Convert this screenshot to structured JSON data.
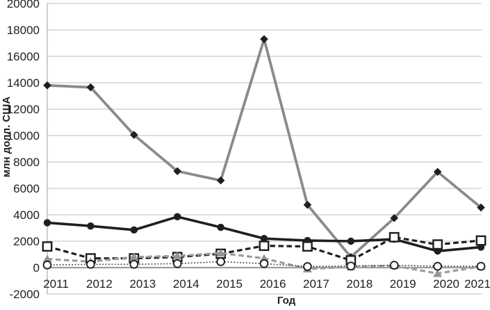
{
  "chart_data": {
    "type": "line",
    "title": "",
    "xlabel": "Год",
    "ylabel": "млн долл. США",
    "categories": [
      "2011",
      "2012",
      "2013",
      "2014",
      "2015",
      "2016",
      "2017",
      "2018",
      "2019",
      "2020",
      "2021"
    ],
    "ylim": [
      -2000,
      20000
    ],
    "ytick_step": 2000,
    "grid": "horizontal",
    "legend": "none",
    "series": [
      {
        "name": "gray-solid-black-diamond",
        "marker": "diamond",
        "marker_color": "#1f1f1f",
        "line_color": "#8a8a8a",
        "line_style": "solid",
        "line_width": 3.8,
        "values": [
          13800,
          13650,
          10050,
          7300,
          6600,
          17300,
          4750,
          800,
          3750,
          7250,
          4550
        ]
      },
      {
        "name": "black-solid-filled-circle",
        "marker": "filled-circle",
        "marker_color": "#1f1f1f",
        "line_color": "#1f1f1f",
        "line_style": "solid",
        "line_width": 3.6,
        "values": [
          3400,
          3150,
          2850,
          3850,
          3050,
          2200,
          2050,
          2000,
          2150,
          1250,
          1550
        ]
      },
      {
        "name": "black-dashed-open-square",
        "marker": "open-square",
        "marker_color": "#1f1f1f",
        "line_color": "#1f1f1f",
        "line_style": "dashed",
        "line_width": 3.2,
        "values": [
          1600,
          700,
          700,
          800,
          1050,
          1650,
          1600,
          550,
          2300,
          1750,
          2050
        ]
      },
      {
        "name": "gray-dashed-filled-triangle",
        "marker": "filled-triangle",
        "marker_color": "#959595",
        "line_color": "#9c9c9c",
        "line_style": "dashed",
        "line_width": 3.2,
        "values": [
          650,
          450,
          800,
          880,
          1100,
          700,
          -100,
          50,
          150,
          -450,
          100
        ]
      },
      {
        "name": "black-dotted-open-circle",
        "marker": "open-circle",
        "marker_color": "#1f1f1f",
        "line_color": "#3a3a3a",
        "line_style": "dotted",
        "line_width": 1.6,
        "values": [
          200,
          250,
          250,
          300,
          450,
          300,
          80,
          120,
          180,
          100,
          100
        ]
      }
    ]
  },
  "colors": {
    "background": "#ffffff",
    "gridline": "#c9c9c9",
    "zero_axis": "#9e9e9e",
    "axis_line": "#b3b3b3",
    "text": "#1f1f1f"
  }
}
